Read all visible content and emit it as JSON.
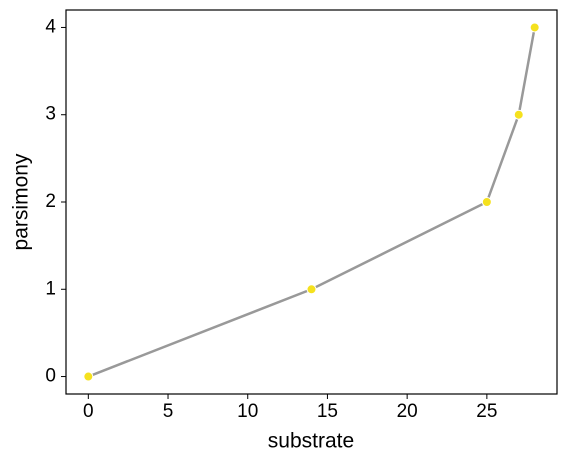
{
  "chart_data": {
    "type": "line",
    "x_label": "substrate",
    "y_label": "parsimony",
    "x": [
      0,
      14,
      25,
      27,
      28
    ],
    "series": [
      {
        "name": "parsimony",
        "color": "#999999",
        "marker_color": "#f5e11e",
        "values": [
          0,
          1,
          2,
          3,
          4
        ]
      }
    ],
    "xlim": [
      -1.4,
      29.4
    ],
    "ylim": [
      -0.2,
      4.2
    ],
    "xticks": [
      0,
      5,
      10,
      15,
      20,
      25
    ],
    "yticks": [
      0,
      1,
      2,
      3,
      4
    ],
    "grid": false,
    "legend": false
  }
}
